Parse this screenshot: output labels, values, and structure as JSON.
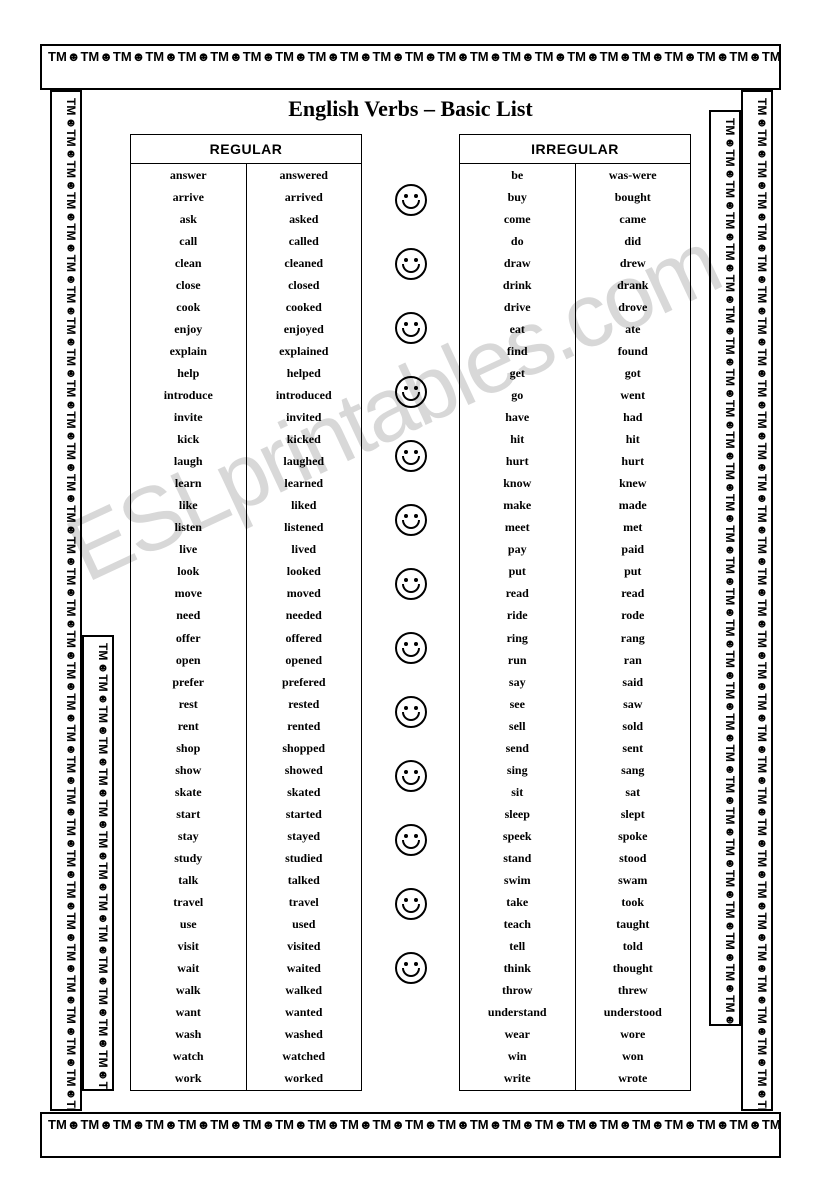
{
  "title": "English Verbs – Basic List",
  "watermark": "ESLprintables.com",
  "border_pattern": "TM☻TM☻TM☻TM☻TM☻TM☻TM☻TM☻TM☻TM☻TM☻TM☻TM☻TM☻TM☻TM☻TM☻TM☻TM☻TM☻TM☻TM☻TM☻TM☻TM☻TM☻TM☻TM☻TM☻TM☻TM☻TM☻TM☻TM☻TM☻T",
  "regular": {
    "header": "REGULAR",
    "rows": [
      [
        "answer",
        "answered"
      ],
      [
        "arrive",
        "arrived"
      ],
      [
        "ask",
        "asked"
      ],
      [
        "call",
        "called"
      ],
      [
        "clean",
        "cleaned"
      ],
      [
        "close",
        "closed"
      ],
      [
        "cook",
        "cooked"
      ],
      [
        "enjoy",
        "enjoyed"
      ],
      [
        "explain",
        "explained"
      ],
      [
        "help",
        "helped"
      ],
      [
        "introduce",
        "introduced"
      ],
      [
        "invite",
        "invited"
      ],
      [
        "kick",
        "kicked"
      ],
      [
        "laugh",
        "laughed"
      ],
      [
        "learn",
        "learned"
      ],
      [
        "like",
        "liked"
      ],
      [
        "listen",
        "listened"
      ],
      [
        "live",
        "lived"
      ],
      [
        "look",
        "looked"
      ],
      [
        "move",
        "moved"
      ],
      [
        "need",
        "needed"
      ],
      [
        "offer",
        "offered"
      ],
      [
        "open",
        "opened"
      ],
      [
        "prefer",
        "prefered"
      ],
      [
        "rest",
        "rested"
      ],
      [
        "rent",
        "rented"
      ],
      [
        "shop",
        "shopped"
      ],
      [
        "show",
        "showed"
      ],
      [
        "skate",
        "skated"
      ],
      [
        "start",
        "started"
      ],
      [
        "stay",
        "stayed"
      ],
      [
        "study",
        "studied"
      ],
      [
        "talk",
        "talked"
      ],
      [
        "travel",
        "travel"
      ],
      [
        "use",
        "used"
      ],
      [
        "visit",
        "visited"
      ],
      [
        "wait",
        "waited"
      ],
      [
        "walk",
        "walked"
      ],
      [
        "want",
        "wanted"
      ],
      [
        "wash",
        "washed"
      ],
      [
        "watch",
        "watched"
      ],
      [
        "work",
        "worked"
      ]
    ]
  },
  "irregular": {
    "header": "IRREGULAR",
    "rows": [
      [
        "be",
        "was-were"
      ],
      [
        "buy",
        "bought"
      ],
      [
        "come",
        "came"
      ],
      [
        "do",
        "did"
      ],
      [
        "draw",
        "drew"
      ],
      [
        "drink",
        "drank"
      ],
      [
        "drive",
        "drove"
      ],
      [
        "eat",
        "ate"
      ],
      [
        "find",
        "found"
      ],
      [
        "get",
        "got"
      ],
      [
        "go",
        "went"
      ],
      [
        "have",
        "had"
      ],
      [
        "hit",
        "hit"
      ],
      [
        "hurt",
        "hurt"
      ],
      [
        "know",
        "knew"
      ],
      [
        "make",
        "made"
      ],
      [
        "meet",
        "met"
      ],
      [
        "pay",
        "paid"
      ],
      [
        "put",
        "put"
      ],
      [
        "read",
        "read"
      ],
      [
        "ride",
        "rode"
      ],
      [
        "ring",
        "rang"
      ],
      [
        "run",
        "ran"
      ],
      [
        "say",
        "said"
      ],
      [
        "see",
        "saw"
      ],
      [
        "sell",
        "sold"
      ],
      [
        "send",
        "sent"
      ],
      [
        "sing",
        "sang"
      ],
      [
        "sit",
        "sat"
      ],
      [
        "sleep",
        "slept"
      ],
      [
        "speek",
        "spoke"
      ],
      [
        "stand",
        "stood"
      ],
      [
        "swim",
        "swam"
      ],
      [
        "take",
        "took"
      ],
      [
        "teach",
        "taught"
      ],
      [
        "tell",
        "told"
      ],
      [
        "think",
        "thought"
      ],
      [
        "throw",
        "threw"
      ],
      [
        "understand",
        "understood"
      ],
      [
        "wear",
        "wore"
      ],
      [
        "win",
        "won"
      ],
      [
        "write",
        "wrote"
      ]
    ]
  },
  "smiley_count": 13,
  "colors": {
    "text": "#000000",
    "background": "#ffffff",
    "watermark": "#d8d8d8",
    "border": "#000000"
  }
}
